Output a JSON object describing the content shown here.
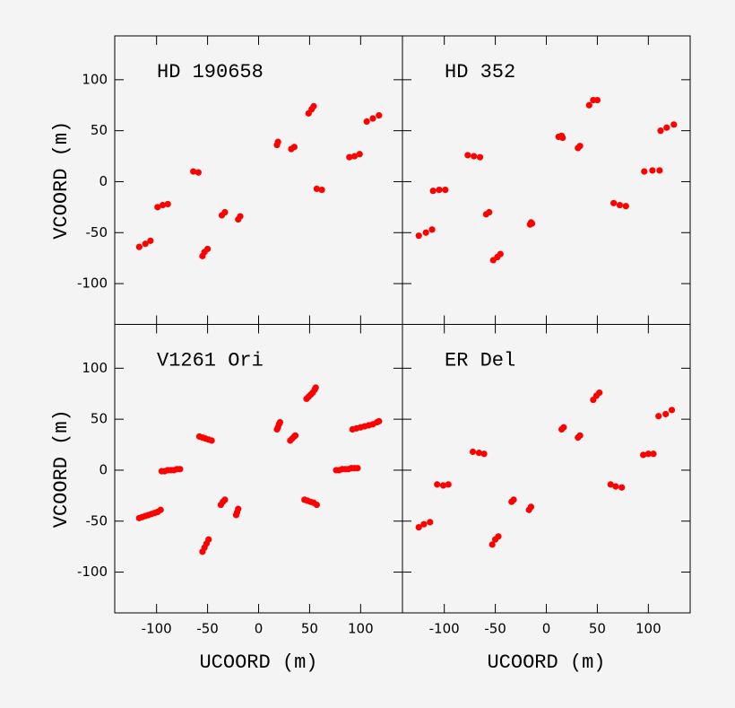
{
  "chart_data": [
    {
      "type": "scatter",
      "title": "HD 190658",
      "y_label": "VCOORD (m)",
      "color": "#ff0000",
      "xlim": [
        -141,
        141
      ],
      "ylim": [
        -140,
        143
      ],
      "yticks": [
        -100,
        -50,
        0,
        50,
        100
      ],
      "x": [
        -117,
        -111,
        -106,
        -99,
        -94,
        -89,
        -64,
        -59,
        -55,
        -53,
        -50,
        -36,
        -33,
        -20,
        -18,
        18,
        19,
        32,
        35,
        49,
        52,
        54,
        57,
        62,
        89,
        94,
        99,
        106,
        112,
        118
      ],
      "y": [
        -64,
        -61,
        -58,
        -25,
        -23,
        -22,
        10,
        9,
        -73,
        -69,
        -66,
        -33,
        -30,
        -37,
        -34,
        36,
        39,
        32,
        34,
        67,
        71,
        74,
        -7,
        -8,
        24,
        25,
        27,
        59,
        62,
        65
      ]
    },
    {
      "type": "scatter",
      "title": "HD 352",
      "color": "#ff0000",
      "xlim": [
        -141,
        141
      ],
      "ylim": [
        -140,
        143
      ],
      "x": [
        -125,
        -118,
        -112,
        -111,
        -105,
        -99,
        -77,
        -71,
        -65,
        -59,
        -56,
        -52,
        -48,
        -45,
        -16,
        -15,
        -14,
        12,
        15,
        16,
        31,
        33,
        42,
        46,
        50,
        66,
        72,
        78,
        96,
        104,
        111,
        112,
        118,
        125
      ],
      "y": [
        -53,
        -50,
        -47,
        -9,
        -8,
        -8,
        26,
        25,
        24,
        -32,
        -30,
        -77,
        -74,
        -71,
        -42,
        -40,
        -41,
        44,
        45,
        43,
        33,
        35,
        75,
        80,
        80,
        -21,
        -23,
        -24,
        10,
        11,
        11,
        50,
        53,
        56
      ]
    },
    {
      "type": "scatter",
      "title": "V1261 Ori",
      "x_label": "UCOORD (m)",
      "y_label": "VCOORD (m)",
      "color": "#ff0000",
      "xlim": [
        -141,
        141
      ],
      "ylim": [
        -140,
        143
      ],
      "xticks": [
        -100,
        -50,
        0,
        50,
        100
      ],
      "yticks": [
        -100,
        -50,
        0,
        50,
        100
      ],
      "x": [
        -117,
        -114,
        -111,
        -108,
        -105,
        -102,
        -99,
        -96,
        -95,
        -92,
        -89,
        -86,
        -83,
        -80,
        -77,
        -58,
        -55,
        -52,
        -49,
        -46,
        -55,
        -53,
        -51,
        -49,
        -37,
        -35,
        -33,
        -22,
        -21,
        -20,
        18,
        19,
        20,
        21,
        31,
        33,
        35,
        36,
        47,
        49,
        51,
        53,
        55,
        56,
        45,
        48,
        51,
        54,
        57,
        76,
        79,
        82,
        85,
        88,
        91,
        94,
        97,
        92,
        96,
        100,
        104,
        108,
        112,
        116,
        118
      ],
      "y": [
        -47,
        -46,
        -45,
        -44,
        -43,
        -42,
        -41,
        -39,
        -1,
        -1,
        0,
        0,
        0,
        1,
        1,
        33,
        32,
        31,
        30,
        29,
        -80,
        -76,
        -72,
        -68,
        -34,
        -31,
        -29,
        -44,
        -41,
        -38,
        40,
        42,
        45,
        47,
        29,
        31,
        33,
        34,
        70,
        72,
        74,
        76,
        79,
        81,
        -29,
        -30,
        -31,
        -32,
        -34,
        0,
        0,
        1,
        1,
        1,
        2,
        2,
        2,
        40,
        41,
        42,
        43,
        44,
        45,
        47,
        48
      ]
    },
    {
      "type": "scatter",
      "title": "ER Del",
      "x_label": "UCOORD (m)",
      "color": "#ff0000",
      "xlim": [
        -141,
        141
      ],
      "ylim": [
        -140,
        143
      ],
      "xticks": [
        -100,
        -50,
        0,
        50,
        100
      ],
      "x": [
        -125,
        -120,
        -114,
        -107,
        -101,
        -96,
        -72,
        -66,
        -61,
        -34,
        -32,
        -53,
        -50,
        -47,
        -17,
        -15,
        15,
        17,
        31,
        33,
        46,
        49,
        52,
        63,
        68,
        74,
        95,
        100,
        105,
        110,
        117,
        123
      ],
      "y": [
        -56,
        -53,
        -51,
        -14,
        -15,
        -14,
        18,
        17,
        16,
        -31,
        -29,
        -73,
        -68,
        -65,
        -39,
        -36,
        40,
        42,
        32,
        34,
        69,
        73,
        76,
        -14,
        -16,
        -17,
        15,
        16,
        16,
        53,
        55,
        59
      ]
    }
  ]
}
